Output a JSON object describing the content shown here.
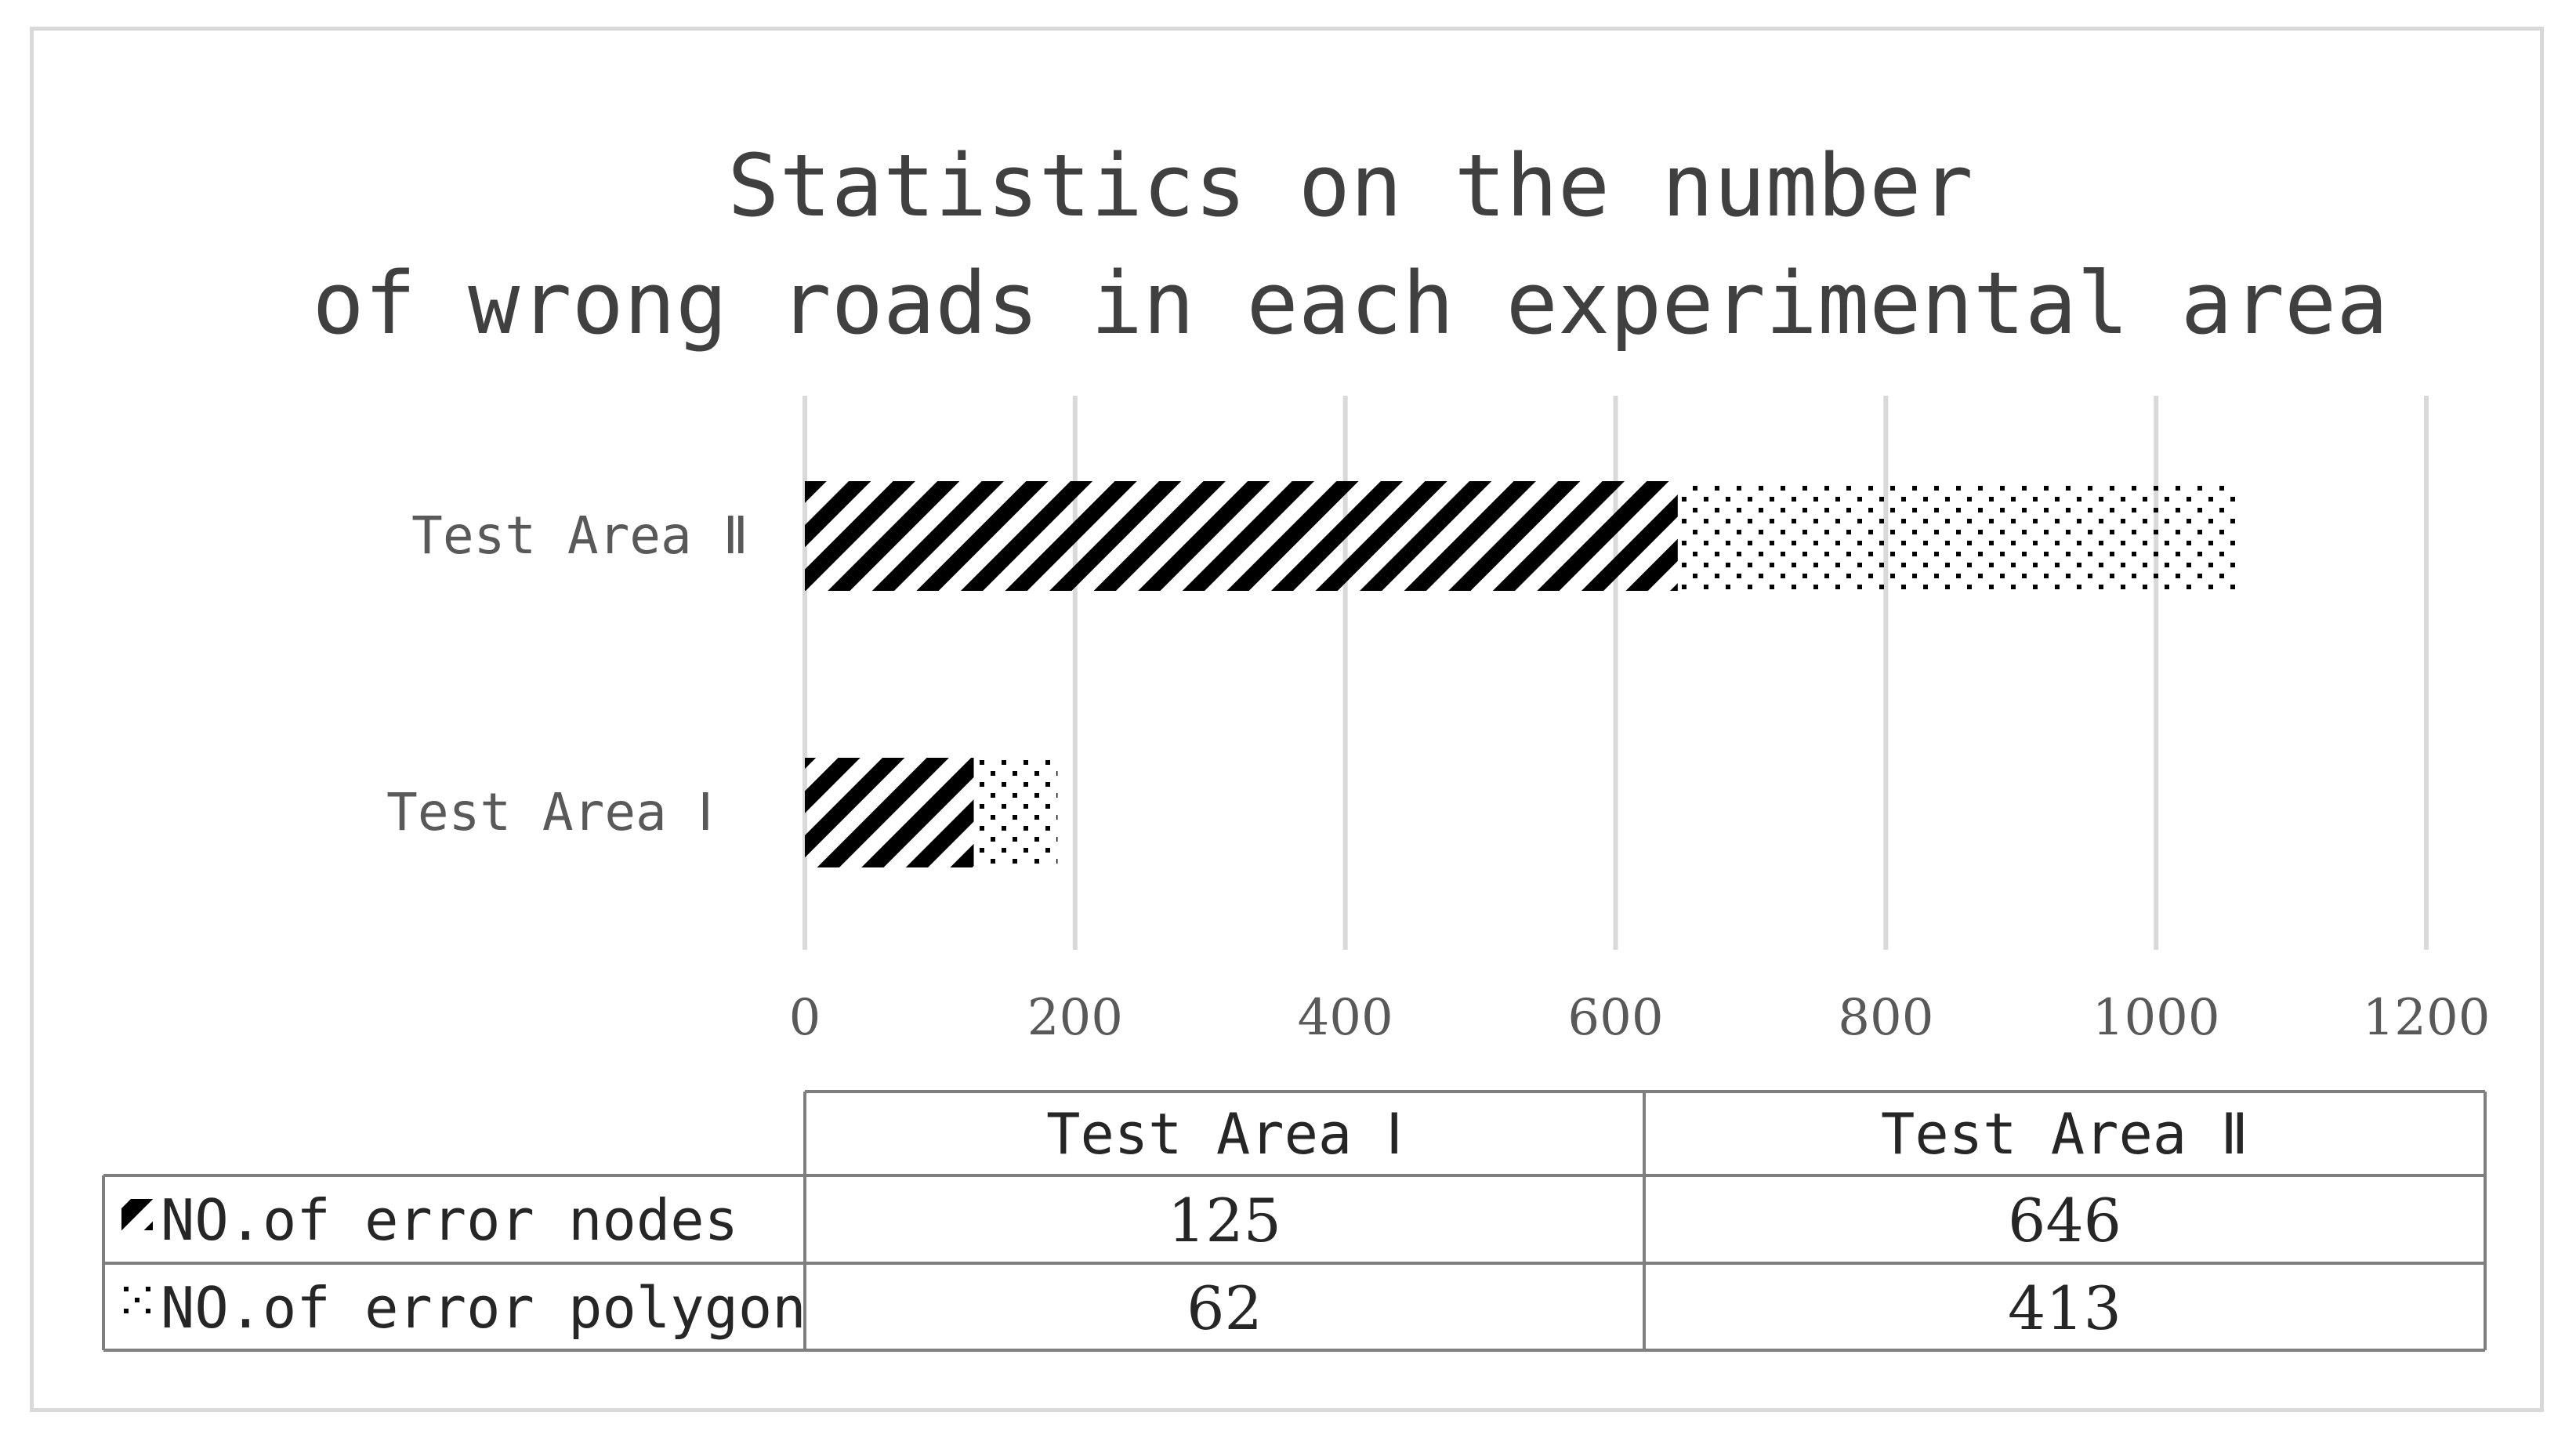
{
  "chart_data": {
    "type": "bar",
    "orientation": "horizontal",
    "stacked": true,
    "title": "Statistics on the number of wrong roads in each experimental area",
    "title_lines": [
      "Statistics on the number",
      "of wrong roads in each experimental area"
    ],
    "categories": [
      "Test Area Ⅰ",
      "Test Area Ⅱ"
    ],
    "series": [
      {
        "name": "NO.of error nodes",
        "values": [
          125,
          646
        ],
        "pattern": "diagonal-stripes"
      },
      {
        "name": "NO.of error polygon",
        "values": [
          62,
          413
        ],
        "pattern": "dots"
      }
    ],
    "xlim": [
      0,
      1200
    ],
    "x_ticks": [
      "0",
      "200",
      "400",
      "600",
      "800",
      "1000",
      "1200"
    ],
    "grid": true,
    "legend": "data-table-below",
    "colors": {
      "bar_fill": "#000000",
      "grid": "#d9d9d9",
      "text": "#595959",
      "table_border": "#7f7f7f"
    }
  }
}
